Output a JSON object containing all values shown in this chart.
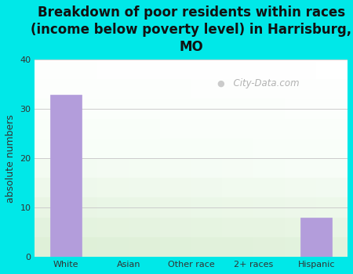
{
  "title": "Breakdown of poor residents within races\n(income below poverty level) in Harrisburg,\nMO",
  "categories": [
    "White",
    "Asian",
    "Other race",
    "2+ races",
    "Hispanic"
  ],
  "values": [
    33,
    0,
    0,
    0,
    8
  ],
  "bar_color": "#b39ddb",
  "bar_edgecolor": "#b39ddb",
  "ylabel": "absolute numbers",
  "ylim": [
    0,
    40
  ],
  "yticks": [
    0,
    10,
    20,
    30,
    40
  ],
  "bg_outer": "#00e8e8",
  "bg_plot_top": "#f5fff5",
  "bg_plot_bottom": "#e8f5e0",
  "grid_color": "#cccccc",
  "title_fontsize": 12,
  "ylabel_fontsize": 9,
  "tick_fontsize": 8,
  "watermark_text": "City-Data.com",
  "watermark_color": "#aabbbб"
}
